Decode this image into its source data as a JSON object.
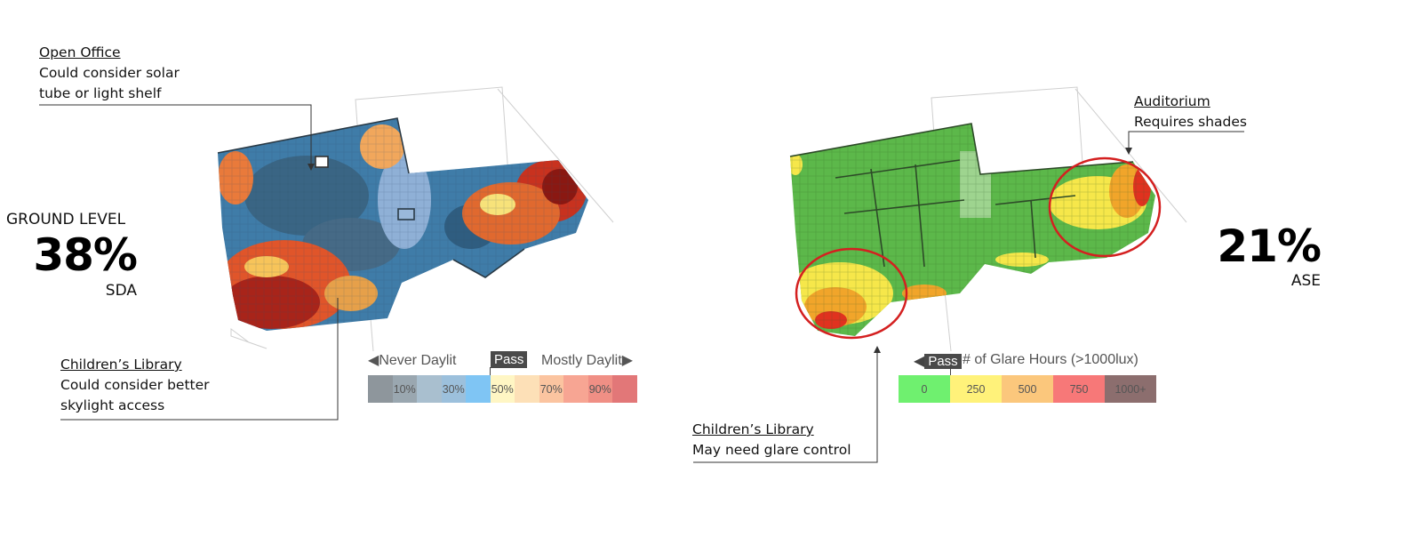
{
  "left_panel": {
    "level_label": "GROUND LEVEL",
    "percent": "38%",
    "metric": "SDA",
    "callout_top": {
      "title": "Open Office",
      "lines": [
        "Could consider solar",
        "tube or light shelf"
      ]
    },
    "callout_bottom": {
      "title": "Children’s Library",
      "lines": [
        "Could consider better",
        "skylight access"
      ]
    },
    "legend": {
      "left_label": "Never Daylit",
      "pass_label": "Pass",
      "right_label": "Mostly Daylit",
      "cells": [
        {
          "label": "",
          "color": "#8e969c"
        },
        {
          "label": "10%",
          "color": "#9aa7b0"
        },
        {
          "label": "",
          "color": "#a9bfcf"
        },
        {
          "label": "30%",
          "color": "#9cc0dc"
        },
        {
          "label": "",
          "color": "#7fc5f4"
        },
        {
          "label": "50%",
          "color": "#fff6c4"
        },
        {
          "label": "",
          "color": "#fde0b7"
        },
        {
          "label": "70%",
          "color": "#fbc4a0"
        },
        {
          "label": "",
          "color": "#f7a593"
        },
        {
          "label": "90%",
          "color": "#f08f85"
        },
        {
          "label": "",
          "color": "#e27778"
        }
      ]
    }
  },
  "right_panel": {
    "percent": "21%",
    "metric": "ASE",
    "callout_top": {
      "title": "Auditorium",
      "lines": [
        "Requires shades"
      ]
    },
    "callout_bottom": {
      "title": "Children’s Library",
      "lines": [
        "May need glare control"
      ]
    },
    "legend": {
      "pass_label": "Pass",
      "title": "# of Glare Hours (>1000lux)",
      "cells": [
        {
          "label": "0",
          "color": "#6ff06f"
        },
        {
          "label": "250",
          "color": "#fff27a"
        },
        {
          "label": "500",
          "color": "#fbc77c"
        },
        {
          "label": "750",
          "color": "#f77878"
        },
        {
          "label": "1000+",
          "color": "#8c6e6e"
        }
      ]
    }
  },
  "colors": {
    "sda_blue": "#3f7ca8",
    "sda_dark": "#5a6672",
    "sda_red": "#c8321f",
    "sda_yellow": "#f7e27a",
    "ase_green": "#5cb84a",
    "ase_yellow": "#f6e74a",
    "ase_red": "#e0321f",
    "circle_red": "#d42020"
  }
}
